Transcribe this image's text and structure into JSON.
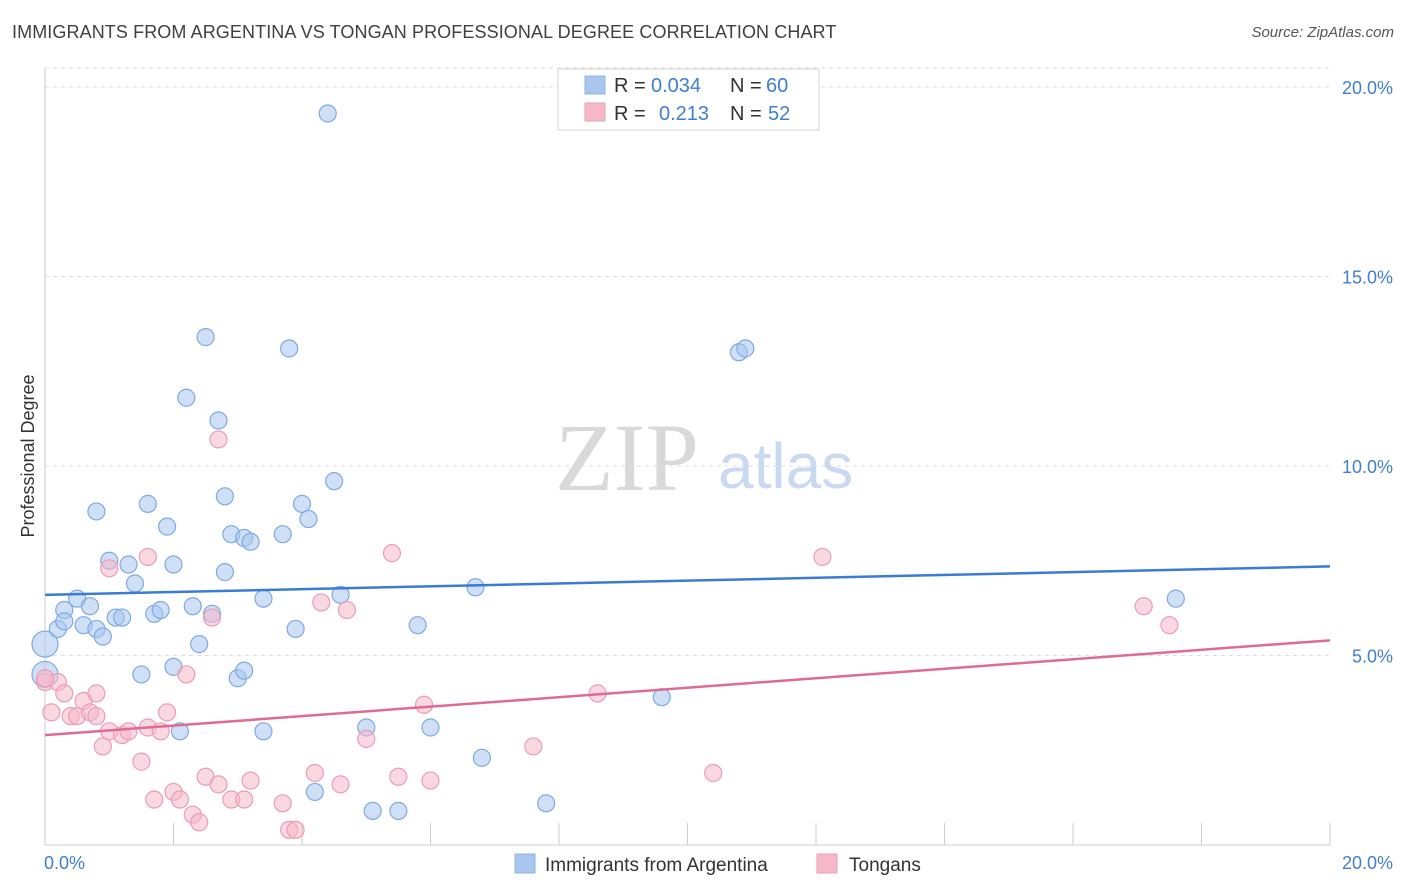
{
  "title": "IMMIGRANTS FROM ARGENTINA VS TONGAN PROFESSIONAL DEGREE CORRELATION CHART",
  "source": "Source: ZipAtlas.com",
  "watermark": {
    "part1": "ZIP",
    "part2": "atlas"
  },
  "legend_box": {
    "rows": [
      {
        "r_label": "R = ",
        "r_value": "0.034",
        "n_label": "N = ",
        "n_value": "60",
        "color": "#a8c6ee"
      },
      {
        "r_label": "R = ",
        "r_value": "0.213",
        "n_label": "N = ",
        "n_value": "52",
        "color": "#f5b8c9"
      }
    ]
  },
  "chart_data": {
    "type": "scatter",
    "title": "IMMIGRANTS FROM ARGENTINA VS TONGAN PROFESSIONAL DEGREE CORRELATION CHART",
    "xlabel": "",
    "ylabel": "Professional Degree",
    "xlim": [
      0,
      20
    ],
    "ylim": [
      0,
      20.5
    ],
    "x_tick_labels": [
      "0.0%",
      "20.0%"
    ],
    "y_ticks": [
      5,
      10,
      15,
      20
    ],
    "y_tick_labels": [
      "5.0%",
      "10.0%",
      "15.0%",
      "20.0%"
    ],
    "grid": true,
    "legend": "bottom-center",
    "series": [
      {
        "name": "Immigrants from Argentina",
        "color": "#3a7bd5",
        "fill": "#a8c6ee",
        "trend": {
          "x": [
            0,
            20
          ],
          "y": [
            6.6,
            7.35
          ]
        },
        "points": [
          [
            0.0,
            5.3
          ],
          [
            0.0,
            4.5
          ],
          [
            0.2,
            5.7
          ],
          [
            0.3,
            6.2
          ],
          [
            0.3,
            5.9
          ],
          [
            0.5,
            6.5
          ],
          [
            0.6,
            5.8
          ],
          [
            0.7,
            6.3
          ],
          [
            0.8,
            8.8
          ],
          [
            0.8,
            5.7
          ],
          [
            0.9,
            5.5
          ],
          [
            1.0,
            7.5
          ],
          [
            1.1,
            6.0
          ],
          [
            1.2,
            6.0
          ],
          [
            1.3,
            7.4
          ],
          [
            1.4,
            6.9
          ],
          [
            1.5,
            4.5
          ],
          [
            1.6,
            9.0
          ],
          [
            1.7,
            6.1
          ],
          [
            1.8,
            6.2
          ],
          [
            1.9,
            8.4
          ],
          [
            2.0,
            7.4
          ],
          [
            2.0,
            4.7
          ],
          [
            2.1,
            3.0
          ],
          [
            2.2,
            11.8
          ],
          [
            2.3,
            6.3
          ],
          [
            2.4,
            5.3
          ],
          [
            2.5,
            13.4
          ],
          [
            2.6,
            6.1
          ],
          [
            2.7,
            11.2
          ],
          [
            2.8,
            7.2
          ],
          [
            2.8,
            9.2
          ],
          [
            2.9,
            8.2
          ],
          [
            3.0,
            4.4
          ],
          [
            3.1,
            4.6
          ],
          [
            3.1,
            8.1
          ],
          [
            3.2,
            8.0
          ],
          [
            3.4,
            3.0
          ],
          [
            3.4,
            6.5
          ],
          [
            3.7,
            8.2
          ],
          [
            3.8,
            13.1
          ],
          [
            3.9,
            5.7
          ],
          [
            4.0,
            9.0
          ],
          [
            4.1,
            8.6
          ],
          [
            4.2,
            1.4
          ],
          [
            4.4,
            19.3
          ],
          [
            4.5,
            9.6
          ],
          [
            4.6,
            6.6
          ],
          [
            5.0,
            3.1
          ],
          [
            5.1,
            0.9
          ],
          [
            5.5,
            0.9
          ],
          [
            5.8,
            5.8
          ],
          [
            6.0,
            3.1
          ],
          [
            6.7,
            6.8
          ],
          [
            6.8,
            2.3
          ],
          [
            7.8,
            1.1
          ],
          [
            9.6,
            3.9
          ],
          [
            10.8,
            13.0
          ],
          [
            10.9,
            13.1
          ],
          [
            17.6,
            6.5
          ]
        ]
      },
      {
        "name": "Tongans",
        "color": "#e06a95",
        "fill": "#f5b8c9",
        "trend": {
          "x": [
            0,
            20
          ],
          "y": [
            2.9,
            5.4
          ]
        },
        "points": [
          [
            0.0,
            4.3
          ],
          [
            0.1,
            3.5
          ],
          [
            0.2,
            4.3
          ],
          [
            0.3,
            4.0
          ],
          [
            0.4,
            3.4
          ],
          [
            0.5,
            3.4
          ],
          [
            0.6,
            3.8
          ],
          [
            0.7,
            3.5
          ],
          [
            0.8,
            3.4
          ],
          [
            0.8,
            4.0
          ],
          [
            0.9,
            2.6
          ],
          [
            1.0,
            3.0
          ],
          [
            1.0,
            7.3
          ],
          [
            1.2,
            2.9
          ],
          [
            1.3,
            3.0
          ],
          [
            1.5,
            2.2
          ],
          [
            1.6,
            3.1
          ],
          [
            1.6,
            7.6
          ],
          [
            1.7,
            1.2
          ],
          [
            1.8,
            3.0
          ],
          [
            1.9,
            3.5
          ],
          [
            2.0,
            1.4
          ],
          [
            2.1,
            1.2
          ],
          [
            2.2,
            4.5
          ],
          [
            2.3,
            0.8
          ],
          [
            2.4,
            0.6
          ],
          [
            2.5,
            1.8
          ],
          [
            2.6,
            6.0
          ],
          [
            2.7,
            1.6
          ],
          [
            2.7,
            10.7
          ],
          [
            2.9,
            1.2
          ],
          [
            3.1,
            1.2
          ],
          [
            3.2,
            1.7
          ],
          [
            3.7,
            1.1
          ],
          [
            3.8,
            0.4
          ],
          [
            3.9,
            0.4
          ],
          [
            4.2,
            1.9
          ],
          [
            4.3,
            6.4
          ],
          [
            4.6,
            1.6
          ],
          [
            4.7,
            6.2
          ],
          [
            5.0,
            2.8
          ],
          [
            5.4,
            7.7
          ],
          [
            5.5,
            1.8
          ],
          [
            5.9,
            3.7
          ],
          [
            6.0,
            1.7
          ],
          [
            7.6,
            2.6
          ],
          [
            8.6,
            4.0
          ],
          [
            10.4,
            1.9
          ],
          [
            12.1,
            7.6
          ],
          [
            17.1,
            6.3
          ],
          [
            17.5,
            5.8
          ],
          [
            0.0,
            4.4
          ]
        ]
      }
    ]
  },
  "bottom_legend": [
    {
      "label": "Immigrants from Argentina",
      "color": "#a8c6ee"
    },
    {
      "label": "Tongans",
      "color": "#f5b8c9"
    }
  ]
}
